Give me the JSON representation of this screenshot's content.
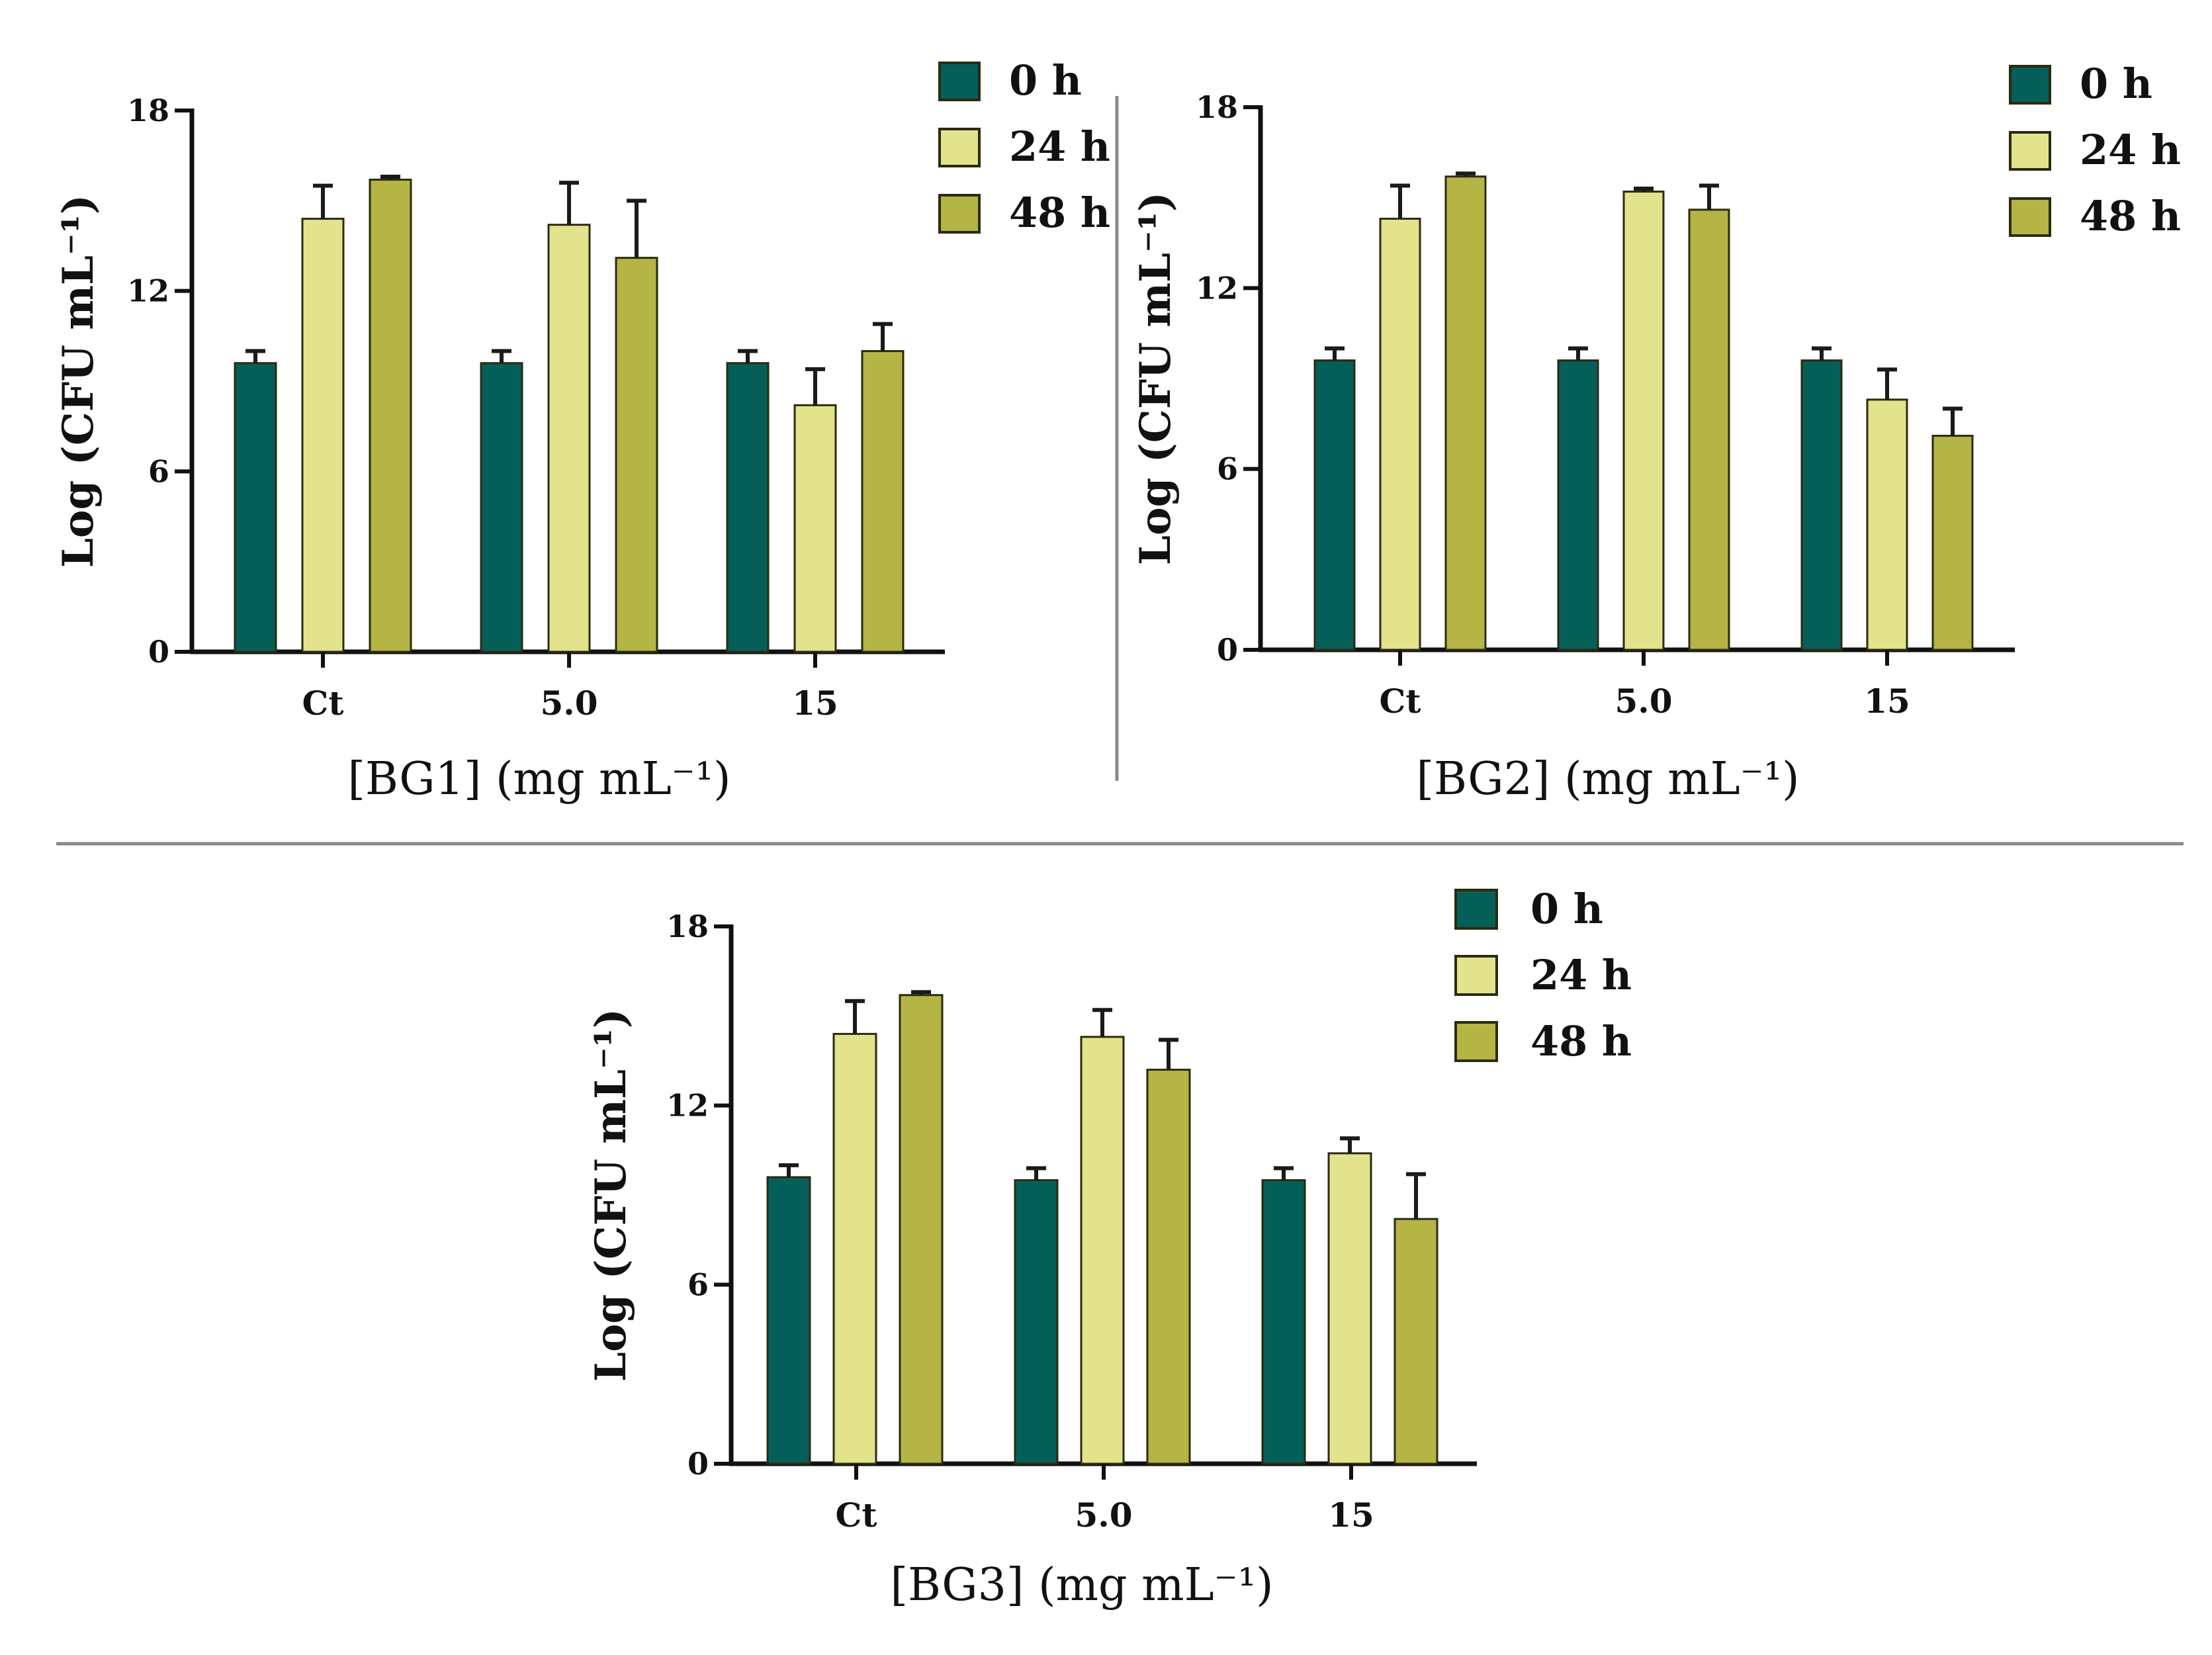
{
  "chart_data": [
    {
      "type": "bar",
      "title": "",
      "xlabel": "[BG1] (mg mL⁻¹)",
      "ylabel": "Log (CFU mL⁻¹)",
      "ylim": [
        0,
        18
      ],
      "yticks": [
        "0",
        "6",
        "12",
        "18"
      ],
      "categories": [
        "Ct",
        "5.0",
        "15"
      ],
      "legend_position": "top-right",
      "series": [
        {
          "name": "0 h",
          "color": "#045f59",
          "values": [
            9.6,
            9.6,
            9.6
          ],
          "errors": [
            0.4,
            0.4,
            0.4
          ]
        },
        {
          "name": "24 h",
          "color": "#e3e38e",
          "values": [
            14.4,
            14.2,
            8.2
          ],
          "errors": [
            1.1,
            1.4,
            1.2
          ]
        },
        {
          "name": "48 h",
          "color": "#b4b544",
          "values": [
            15.7,
            13.1,
            10.0
          ],
          "errors": [
            0.1,
            1.9,
            0.9
          ]
        }
      ]
    },
    {
      "type": "bar",
      "title": "",
      "xlabel": "[BG2] (mg mL⁻¹)",
      "ylabel": "Log (CFU mL⁻¹)",
      "ylim": [
        0,
        18
      ],
      "yticks": [
        "0",
        "6",
        "12",
        "18"
      ],
      "categories": [
        "Ct",
        "5.0",
        "15"
      ],
      "legend_position": "top-right",
      "series": [
        {
          "name": "0 h",
          "color": "#045f59",
          "values": [
            9.6,
            9.6,
            9.6
          ],
          "errors": [
            0.4,
            0.4,
            0.4
          ]
        },
        {
          "name": "24 h",
          "color": "#e3e38e",
          "values": [
            14.3,
            15.2,
            8.3
          ],
          "errors": [
            1.1,
            0.1,
            1.0
          ]
        },
        {
          "name": "48 h",
          "color": "#b4b544",
          "values": [
            15.7,
            14.6,
            7.1
          ],
          "errors": [
            0.1,
            0.8,
            0.9
          ]
        }
      ]
    },
    {
      "type": "bar",
      "title": "",
      "xlabel": "[BG3] (mg mL⁻¹)",
      "ylabel": "Log (CFU mL⁻¹)",
      "ylim": [
        0,
        18
      ],
      "yticks": [
        "0",
        "6",
        "12",
        "18"
      ],
      "categories": [
        "Ct",
        "5.0",
        "15"
      ],
      "legend_position": "top-right",
      "series": [
        {
          "name": "0 h",
          "color": "#045f59",
          "values": [
            9.6,
            9.5,
            9.5
          ],
          "errors": [
            0.4,
            0.4,
            0.4
          ]
        },
        {
          "name": "24 h",
          "color": "#e3e38e",
          "values": [
            14.4,
            14.3,
            10.4
          ],
          "errors": [
            1.1,
            0.9,
            0.5
          ]
        },
        {
          "name": "48 h",
          "color": "#b4b544",
          "values": [
            15.7,
            13.2,
            8.2
          ],
          "errors": [
            0.1,
            1.0,
            1.5
          ]
        }
      ]
    }
  ]
}
